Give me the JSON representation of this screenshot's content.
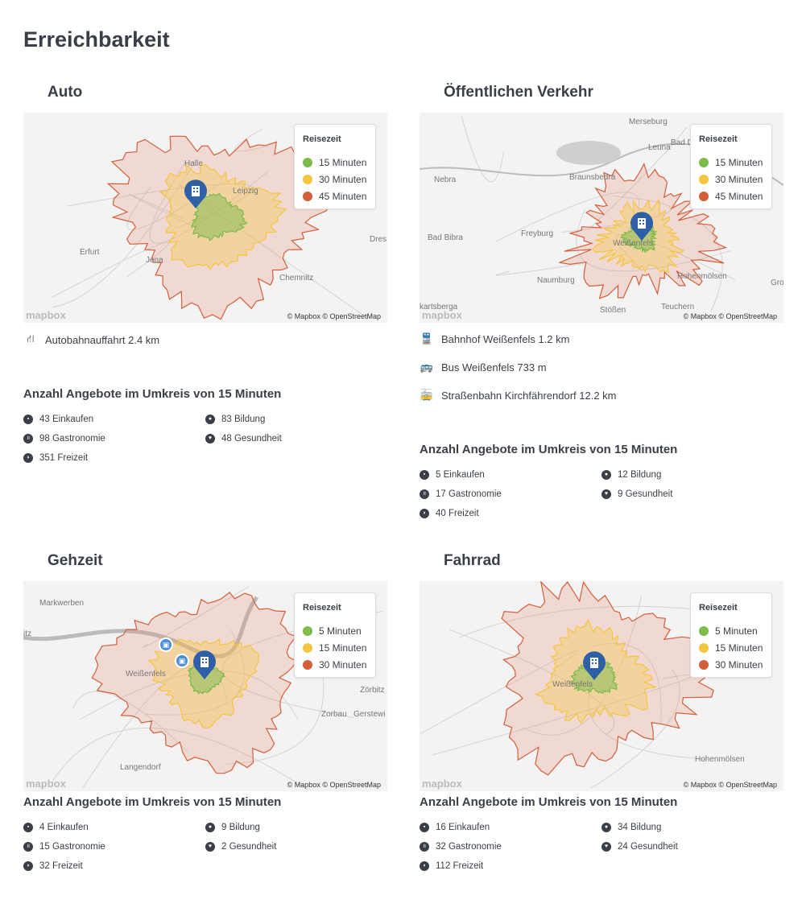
{
  "title": "Erreichbarkeit",
  "legend_title": "Reisezeit",
  "attribution": "© Mapbox © OpenStreetMap",
  "logo": "mapbox",
  "colors": {
    "green": "#7dbb4a",
    "yellow": "#f5c540",
    "red": "#d35f3a",
    "pin": "#2e5fa7"
  },
  "panels": [
    {
      "title": "Auto",
      "legend": [
        "15 Minuten",
        "30 Minuten",
        "45 Minuten"
      ],
      "places": [
        "Halle",
        "Leipzig",
        "Erfurt",
        "Jena",
        "Chemnitz",
        "Dres"
      ],
      "info": [
        {
          "icon": "highway-icon",
          "text": "Autobahnauffahrt 2.4 km"
        }
      ],
      "stats_title": "Anzahl Angebote im Umkreis von 15 Minuten",
      "stats": [
        "43 Einkaufen",
        "98 Gastronomie",
        "351 Freizeit",
        "83 Bildung",
        "48 Gesundheit"
      ]
    },
    {
      "title": "Öffentlichen Verkehr",
      "legend": [
        "15 Minuten",
        "30 Minuten",
        "45 Minuten"
      ],
      "places": [
        "Merseburg",
        "Leuna",
        "Bad Dürre",
        "Nebra",
        "Braunsbedra",
        "Bad Bibra",
        "Freyburg",
        "Weißenfels",
        "Naumburg",
        "Hohenmölsen",
        "Gro",
        "kartsberga",
        "Stößen",
        "Teuchern"
      ],
      "info": [
        {
          "icon": "train-icon",
          "text": "Bahnhof Weißenfels 1.2 km"
        },
        {
          "icon": "bus-icon",
          "text": "Bus Weißenfels 733 m"
        },
        {
          "icon": "tram-icon",
          "text": "Straßenbahn Kirchfährendorf 12.2 km"
        }
      ],
      "stats_title": "Anzahl Angebote im Umkreis von 15 Minuten",
      "stats": [
        "5 Einkaufen",
        "17 Gastronomie",
        "40 Freizeit",
        "12 Bildung",
        "9 Gesundheit"
      ]
    },
    {
      "title": "Gehzeit",
      "legend": [
        "5 Minuten",
        "15 Minuten",
        "30 Minuten"
      ],
      "places": [
        "Markwerben",
        "itz",
        "Weißenfels",
        "Zörbitz",
        "Zorbau",
        "Gerstewi",
        "Langendorf"
      ],
      "info": [],
      "stats_title": "Anzahl Angebote im Umkreis von 15 Minuten",
      "stats": [
        "4 Einkaufen",
        "15 Gastronomie",
        "32 Freizeit",
        "9 Bildung",
        "2 Gesundheit"
      ]
    },
    {
      "title": "Fahrrad",
      "legend": [
        "5 Minuten",
        "15 Minuten",
        "30 Minuten"
      ],
      "places": [
        "Weißenfels",
        "Hohenmölsen"
      ],
      "info": [],
      "stats_title": "Anzahl Angebote im Umkreis von 15 Minuten",
      "stats": [
        "16 Einkaufen",
        "32 Gastronomie",
        "112 Freizeit",
        "34 Bildung",
        "24 Gesundheit"
      ]
    }
  ]
}
